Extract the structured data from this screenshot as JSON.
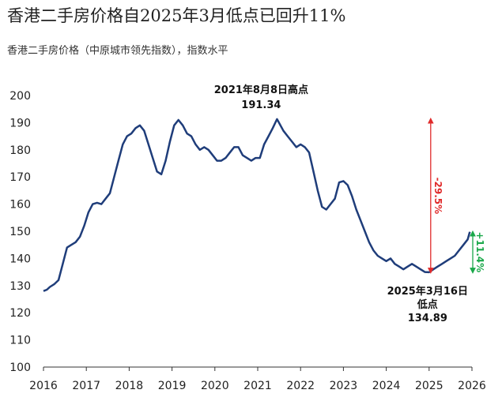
{
  "header": {
    "title": "香港二手房价格自2025年3月低点已回升11%",
    "subtitle": "香港二手房价格（中原城市领先指数），指数水平"
  },
  "chart_data": {
    "type": "line",
    "title": "香港二手房价格自2025年3月低点已回升11%",
    "subtitle": "香港二手房价格（中原城市领先指数），指数水平",
    "xlabel": "",
    "ylabel": "",
    "xlim": [
      2016,
      2026
    ],
    "ylim": [
      100,
      200
    ],
    "yticks": [
      100,
      110,
      120,
      130,
      140,
      150,
      160,
      170,
      180,
      190,
      200
    ],
    "xticks": [
      2016,
      2017,
      2018,
      2019,
      2020,
      2021,
      2022,
      2023,
      2024,
      2025,
      2026
    ],
    "grid": false,
    "series": [
      {
        "color": "#1f3d7a",
        "x": [
          2016.0,
          2016.08,
          2016.15,
          2016.25,
          2016.35,
          2016.45,
          2016.55,
          2016.65,
          2016.75,
          2016.85,
          2016.95,
          2017.05,
          2017.15,
          2017.25,
          2017.35,
          2017.45,
          2017.55,
          2017.65,
          2017.75,
          2017.85,
          2017.95,
          2018.05,
          2018.15,
          2018.25,
          2018.35,
          2018.45,
          2018.55,
          2018.65,
          2018.75,
          2018.85,
          2018.95,
          2019.05,
          2019.15,
          2019.25,
          2019.35,
          2019.45,
          2019.55,
          2019.65,
          2019.75,
          2019.85,
          2019.95,
          2020.05,
          2020.15,
          2020.25,
          2020.35,
          2020.45,
          2020.55,
          2020.65,
          2020.75,
          2020.85,
          2020.95,
          2021.05,
          2021.15,
          2021.25,
          2021.35,
          2021.45,
          2021.6,
          2021.7,
          2021.8,
          2021.9,
          2022.0,
          2022.1,
          2022.2,
          2022.3,
          2022.4,
          2022.5,
          2022.6,
          2022.7,
          2022.8,
          2022.9,
          2023.0,
          2023.1,
          2023.2,
          2023.3,
          2023.4,
          2023.5,
          2023.6,
          2023.7,
          2023.8,
          2023.9,
          2024.0,
          2024.1,
          2024.2,
          2024.3,
          2024.4,
          2024.5,
          2024.6,
          2024.7,
          2024.8,
          2024.9,
          2025.0,
          2025.1,
          2025.2,
          2025.3,
          2025.4,
          2025.5,
          2025.6,
          2025.7,
          2025.8,
          2025.9,
          2025.95
        ],
        "y": [
          128,
          128.5,
          129.5,
          130.5,
          132,
          138,
          144,
          145,
          146,
          148,
          152,
          157,
          160,
          160.5,
          160,
          162,
          164,
          170,
          176,
          182,
          185,
          186,
          188,
          189,
          187,
          182,
          177,
          172,
          171,
          176,
          183,
          189,
          191,
          189,
          186,
          185,
          182,
          180,
          181,
          180,
          178,
          176,
          176,
          177,
          179,
          181,
          181,
          178,
          177,
          176,
          177,
          177,
          182,
          185,
          188,
          191.3,
          187,
          185,
          183,
          181,
          182,
          181,
          179,
          172,
          165,
          159,
          158,
          160,
          162,
          168,
          168.5,
          167,
          163,
          158,
          154,
          150,
          146,
          143,
          141,
          140,
          139,
          140,
          138,
          137,
          136,
          137,
          138,
          137,
          136,
          135,
          134.9,
          136,
          137,
          138,
          139,
          140,
          141,
          143,
          145,
          147,
          149.8
        ]
      }
    ],
    "annotations": {
      "peak": {
        "label_date": "2021年8月8日高点",
        "label_value": "191.34",
        "x": 2021.45,
        "y": 191.34
      },
      "trough": {
        "label_date": "2025年3月16日",
        "label_word": "低点",
        "label_value": "134.89",
        "x": 2025.0,
        "y": 134.89
      },
      "decline": {
        "text": "-29.5%",
        "color": "#e02b2b"
      },
      "rebound": {
        "text": "+11.4%",
        "color": "#1aa84a"
      }
    }
  }
}
